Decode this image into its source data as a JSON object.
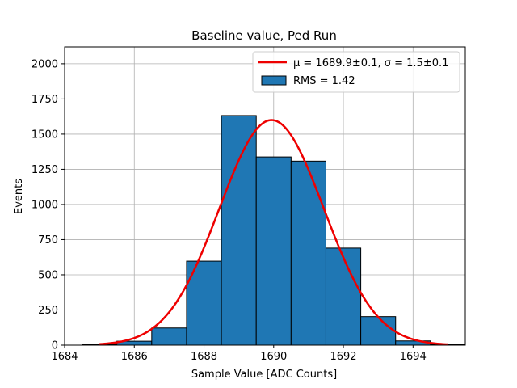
{
  "chart_data": {
    "type": "bar",
    "title": "Baseline value, Ped Run",
    "xlabel": "Sample Value [ADC Counts]",
    "ylabel": "Events",
    "xlim": [
      1684,
      1695.5
    ],
    "ylim": [
      0,
      2120
    ],
    "x_ticks": [
      1684,
      1686,
      1688,
      1690,
      1692,
      1694
    ],
    "y_ticks": [
      0,
      250,
      500,
      750,
      1000,
      1250,
      1500,
      1750,
      2000
    ],
    "grid": true,
    "legend_position": "top-right",
    "bin_width": 1,
    "bins": [
      {
        "left": 1684.5,
        "value": 5
      },
      {
        "left": 1685.5,
        "value": 28
      },
      {
        "left": 1686.5,
        "value": 122
      },
      {
        "left": 1687.5,
        "value": 597
      },
      {
        "left": 1688.5,
        "value": 1632
      },
      {
        "left": 1689.5,
        "value": 1338
      },
      {
        "left": 1690.5,
        "value": 1308
      },
      {
        "left": 1691.5,
        "value": 690
      },
      {
        "left": 1692.5,
        "value": 203
      },
      {
        "left": 1693.5,
        "value": 30
      },
      {
        "left": 1694.5,
        "value": 4
      }
    ],
    "histogram_color": "#1f77b4",
    "fit": {
      "mu": 1689.94,
      "sigma": 1.5,
      "amplitude": 1600,
      "x_range": [
        1685,
        1695
      ],
      "color": "#ee0000"
    },
    "legend": [
      {
        "type": "line",
        "label": "μ = 1689.9±0.1, σ = 1.5±0.1",
        "color": "#ee0000"
      },
      {
        "type": "patch",
        "label": "RMS = 1.42",
        "color": "#1f77b4"
      }
    ]
  }
}
